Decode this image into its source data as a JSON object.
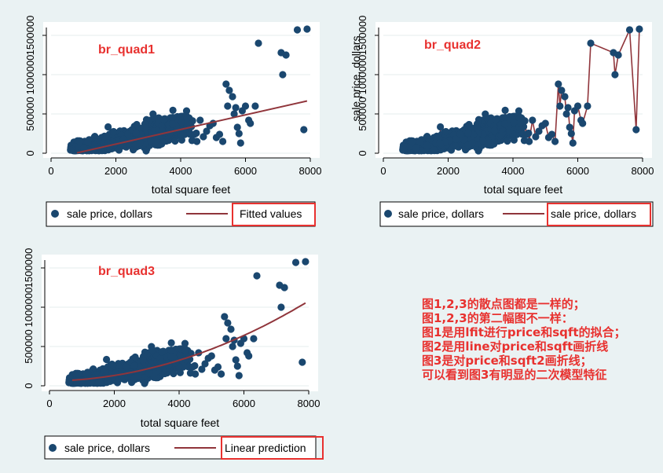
{
  "colors": {
    "background": "#eaf2f3",
    "plot_area": "#ffffff",
    "scatter": "#1a476f",
    "fit": "#90353b",
    "annotation": "#e8312f",
    "highlight_box": "#e8312f"
  },
  "chart_data": [
    {
      "id": "br_quad1",
      "type": "scatter",
      "annotation": "br_quad1",
      "xlabel": "total square feet",
      "ylabel": "",
      "xlim": [
        0,
        8000
      ],
      "ylim": [
        0,
        1600000
      ],
      "xticks": [
        "0",
        "2000",
        "4000",
        "6000",
        "8000"
      ],
      "yticks": [
        "0",
        "500000",
        "1000000",
        "1500000"
      ],
      "fit": "linear",
      "legend": [
        "sale price, dollars",
        "Fitted values"
      ],
      "highlighted_legend_item": "Fitted values"
    },
    {
      "id": "br_quad2",
      "type": "scatter",
      "annotation": "br_quad2",
      "xlabel": "total square feet",
      "ylabel": "sale price, dollars",
      "xlim": [
        0,
        8000
      ],
      "ylim": [
        0,
        1600000
      ],
      "xticks": [
        "0",
        "2000",
        "4000",
        "6000",
        "8000"
      ],
      "yticks": [
        "0",
        "500000",
        "1000000",
        "1500000"
      ],
      "fit": "connected-line",
      "legend": [
        "sale price, dollars",
        "sale price, dollars"
      ],
      "highlighted_legend_item": "sale price, dollars"
    },
    {
      "id": "br_quad3",
      "type": "scatter",
      "annotation": "br_quad3",
      "xlabel": "total square feet",
      "ylabel": "",
      "xlim": [
        0,
        8000
      ],
      "ylim": [
        0,
        1600000
      ],
      "xticks": [
        "0",
        "2000",
        "4000",
        "6000",
        "8000"
      ],
      "yticks": [
        "0",
        "500000",
        "1000000",
        "1500000"
      ],
      "fit": "quadratic",
      "legend": [
        "sale price, dollars",
        "Linear prediction"
      ],
      "highlighted_legend_item": "Linear prediction"
    }
  ],
  "notes": [
    "图1,2,3的散点图都是一样的；",
    "图1,2,3的第二幅图不一样：",
    "图1是用lfit进行price和sqft的拟合；",
    "图2是用line对price和sqft画折线",
    "图3是对price和sqft2画折线；",
    "可以看到图3有明显的二次模型特征"
  ]
}
